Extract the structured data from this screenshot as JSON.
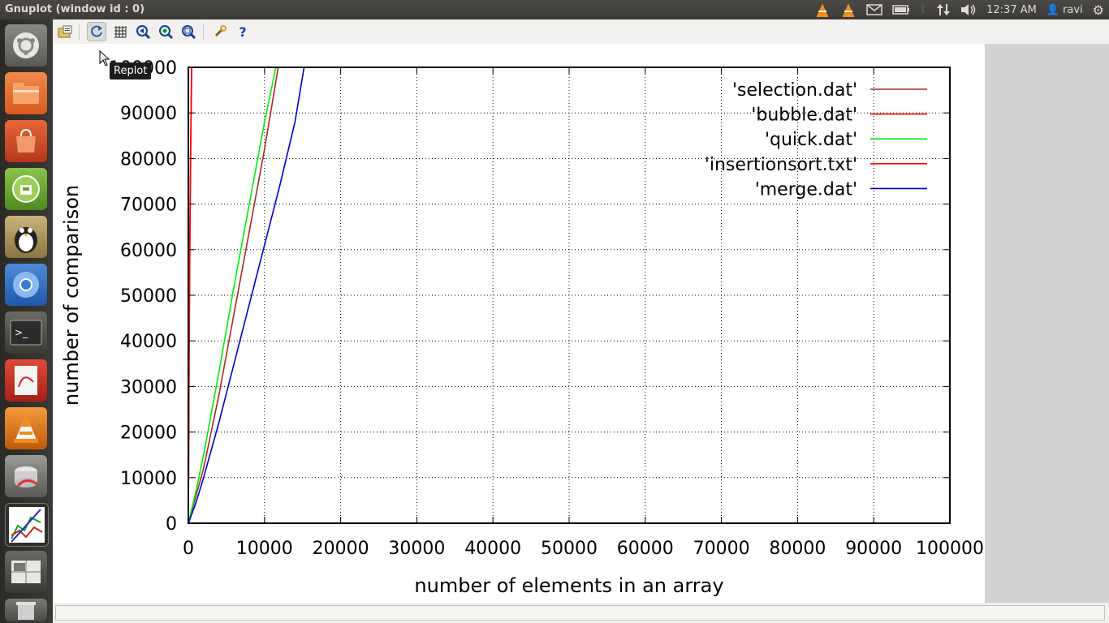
{
  "window": {
    "title": "Gnuplot (window id : 0)"
  },
  "tray": {
    "time": "12:37 AM",
    "user": "ravi"
  },
  "launcher": {
    "items": [
      "Dash home",
      "Files",
      "Ubuntu Software Center",
      "Cloud storage",
      "Penguin app",
      "Chromium",
      "Terminal",
      "Document viewer",
      "VLC media player",
      "Disk utility",
      "Gnuplot",
      "Workspace switcher",
      "Trash"
    ]
  },
  "toolbar": {
    "tooltip": "Replot"
  },
  "colors": {
    "selection": "#a52a2a",
    "bubble": "#ff0000",
    "quick": "#00ee00",
    "insertion": "#ff0000",
    "merge": "#0000cc"
  },
  "chart_data": {
    "type": "line",
    "xlabel": "number of elements in an array",
    "ylabel": "number of comparison",
    "xlim": [
      0,
      100000
    ],
    "ylim": [
      0,
      100000
    ],
    "xticks": [
      "0",
      "10000",
      "20000",
      "30000",
      "40000",
      "50000",
      "60000",
      "70000",
      "80000",
      "90000",
      "100000"
    ],
    "yticks": [
      "0",
      "10000",
      "20000",
      "30000",
      "40000",
      "50000",
      "60000",
      "70000",
      "80000",
      "90000",
      "100000"
    ],
    "grid": true,
    "legend_position": "top-right",
    "series": [
      {
        "name": "'selection.dat'",
        "x": [
          0,
          2000,
          4000,
          6000,
          8000,
          10000,
          11800
        ],
        "y": [
          0,
          12000,
          28000,
          46000,
          64000,
          82000,
          100000
        ]
      },
      {
        "name": "'bubble.dat'",
        "x": [
          0,
          50,
          100,
          200,
          300,
          450
        ],
        "y": [
          0,
          15000,
          35000,
          60000,
          80000,
          100000
        ]
      },
      {
        "name": "'quick.dat'",
        "x": [
          0,
          1000,
          2000,
          4000,
          6000,
          8000,
          10000,
          11500
        ],
        "y": [
          0,
          7000,
          15000,
          33000,
          52000,
          70000,
          88000,
          100000
        ]
      },
      {
        "name": "'insertionsort.txt'",
        "x": [
          0,
          40,
          90,
          180,
          280,
          420
        ],
        "y": [
          0,
          15000,
          35000,
          60000,
          80000,
          100000
        ]
      },
      {
        "name": "'merge.dat'",
        "x": [
          0,
          1000,
          2000,
          4000,
          6000,
          8000,
          10000,
          12000,
          14000,
          15200
        ],
        "y": [
          0,
          4500,
          10000,
          22000,
          35000,
          48000,
          61000,
          74000,
          88000,
          100000
        ]
      }
    ]
  }
}
